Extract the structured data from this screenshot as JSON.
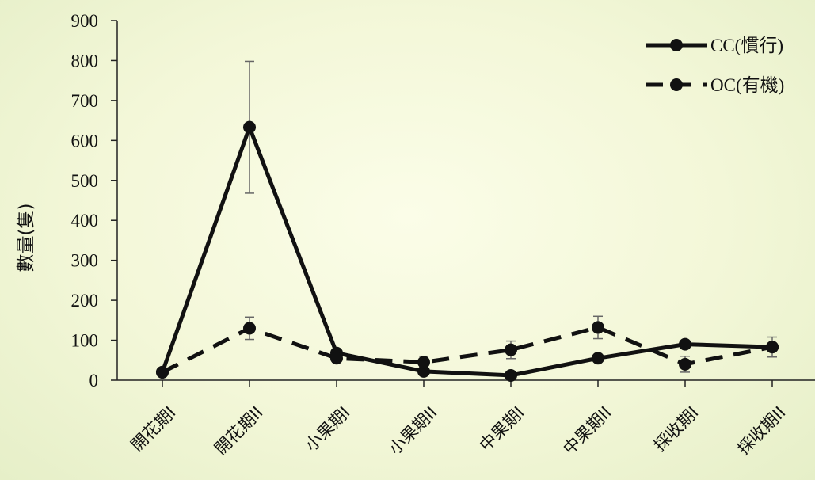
{
  "chart_data": {
    "type": "line",
    "title": "",
    "xlabel": "",
    "ylabel": "數量(隻)",
    "ylim": [
      0,
      900
    ],
    "yticks": [
      0,
      100,
      200,
      300,
      400,
      500,
      600,
      700,
      800,
      900
    ],
    "categories": [
      "開花期I",
      "開花期II",
      "小果期I",
      "小果期II",
      "中果期I",
      "中果期II",
      "採收期I",
      "採收期II"
    ],
    "series": [
      {
        "name": "CC(慣行)",
        "style": "solid",
        "color": "#111111",
        "values": [
          20,
          633,
          68,
          22,
          12,
          55,
          90,
          83
        ],
        "error": [
          0,
          165,
          0,
          0,
          0,
          0,
          0,
          0
        ]
      },
      {
        "name": "OC(有機)",
        "style": "dashed",
        "color": "#111111",
        "values": [
          20,
          130,
          55,
          45,
          76,
          132,
          40,
          83
        ],
        "error": [
          0,
          28,
          10,
          15,
          22,
          28,
          20,
          25
        ]
      }
    ],
    "legend_position": "top-right",
    "grid": false
  }
}
